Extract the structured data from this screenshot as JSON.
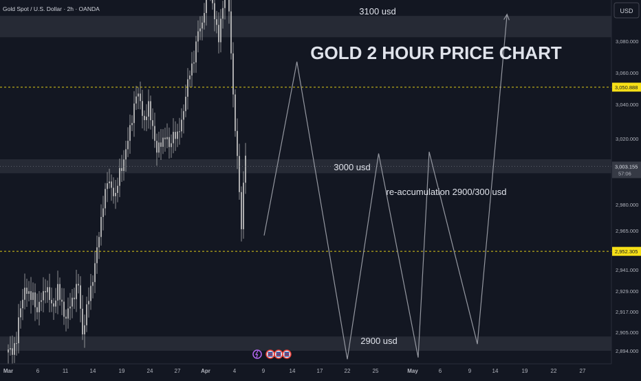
{
  "header": {
    "symbol_title": "Gold Spot / U.S. Dollar · 2h · OANDA",
    "currency_button": "USD"
  },
  "colors": {
    "background": "#131722",
    "candle": "#c8c8c8",
    "zone_fill": "#363a45",
    "projection_line": "#9598a1",
    "price_marker": "#f7e017",
    "dashed_line": "#f7e017",
    "axis_text": "#b2b5be"
  },
  "chart_data": {
    "type": "candlestick",
    "title": "GOLD 2 HOUR PRICE CHART",
    "y_ticks": [
      3080,
      3060,
      3040,
      3020,
      2980,
      2965,
      2941,
      2929,
      2917,
      2905,
      2894
    ],
    "y_tick_labels": [
      "3,080.000",
      "3,060.000",
      "3,040.000",
      "3,020.000",
      "2,980.000",
      "2,965.000",
      "2,941.000",
      "2,929.000",
      "2,917.000",
      "2,905.000",
      "2,894.000"
    ],
    "x_labels": [
      "Mar",
      "6",
      "11",
      "14",
      "19",
      "24",
      "27",
      "Apr",
      "4",
      "9",
      "14",
      "17",
      "22",
      "25",
      "May",
      "6",
      "9",
      "14",
      "19",
      "22",
      "27"
    ],
    "price_markers": [
      {
        "label": "3,050.888",
        "value": 3050.888,
        "dashed_line": true
      },
      {
        "label": "2,952.305",
        "value": 2952.305,
        "dashed_line": true
      }
    ],
    "current_price": {
      "label": "3,003.155",
      "countdown": "57:06",
      "value": 3003.155
    },
    "zones": [
      {
        "label": "3100 usd",
        "from": 3082.5,
        "to": 3096
      },
      {
        "label": "3000 usd",
        "from": 2999,
        "to": 3007.5
      },
      {
        "label": "2900 usd",
        "from": 2894,
        "to": 2902.5
      }
    ],
    "annotations": [
      "re-accumulation 2900/300 usd"
    ],
    "price_series": [
      [
        0,
        2893
      ],
      [
        2,
        2895
      ],
      [
        4,
        2900
      ],
      [
        6,
        2920
      ],
      [
        8,
        2931
      ],
      [
        10,
        2925
      ],
      [
        12,
        2928
      ],
      [
        14,
        2915
      ],
      [
        16,
        2926
      ],
      [
        18,
        2931
      ],
      [
        20,
        2924
      ],
      [
        22,
        2921
      ],
      [
        24,
        2929
      ],
      [
        26,
        2922
      ],
      [
        28,
        2912
      ],
      [
        30,
        2921
      ],
      [
        32,
        2928
      ],
      [
        34,
        2932
      ],
      [
        35,
        2918
      ],
      [
        36,
        2905
      ],
      [
        38,
        2918
      ],
      [
        40,
        2930
      ],
      [
        42,
        2945
      ],
      [
        44,
        2961
      ],
      [
        46,
        2982
      ],
      [
        48,
        2993
      ],
      [
        50,
        2991
      ],
      [
        52,
        2985
      ],
      [
        54,
        2999
      ],
      [
        56,
        3008
      ],
      [
        58,
        3018
      ],
      [
        60,
        3033
      ],
      [
        62,
        3046
      ],
      [
        64,
        3042
      ],
      [
        66,
        3030
      ],
      [
        68,
        3038
      ],
      [
        70,
        3028
      ],
      [
        72,
        3011
      ],
      [
        74,
        3018
      ],
      [
        76,
        3022
      ],
      [
        78,
        3014
      ],
      [
        80,
        3024
      ],
      [
        82,
        3020
      ],
      [
        84,
        3031
      ],
      [
        86,
        3045
      ],
      [
        88,
        3060
      ],
      [
        90,
        3070
      ],
      [
        92,
        3085
      ],
      [
        94,
        3092
      ],
      [
        96,
        3110
      ],
      [
        98,
        3118
      ],
      [
        100,
        3095
      ],
      [
        102,
        3080
      ],
      [
        104,
        3105
      ],
      [
        106,
        3120
      ],
      [
        107,
        3098
      ],
      [
        108,
        3072
      ],
      [
        109,
        3050
      ],
      [
        110,
        3022
      ],
      [
        111,
        3010
      ],
      [
        112,
        2985
      ],
      [
        113,
        2968
      ],
      [
        114,
        2995
      ],
      [
        115,
        3008
      ],
      [
        116,
        2990
      ]
    ],
    "projection": [
      {
        "day": 11.5,
        "price": 2962
      },
      {
        "day": 14.5,
        "price": 3067
      },
      {
        "day": 22.0,
        "price": 2889
      },
      {
        "day": 25.5,
        "price": 3011
      },
      {
        "day": 32.0,
        "price": 2890
      },
      {
        "day": 34.0,
        "price": 3012
      },
      {
        "day": 40.5,
        "price": 2898
      },
      {
        "day": 46.0,
        "price": 3097
      }
    ],
    "event_icons": [
      "lightning-icon",
      "flag-icon",
      "flag-icon",
      "flag-icon"
    ]
  }
}
